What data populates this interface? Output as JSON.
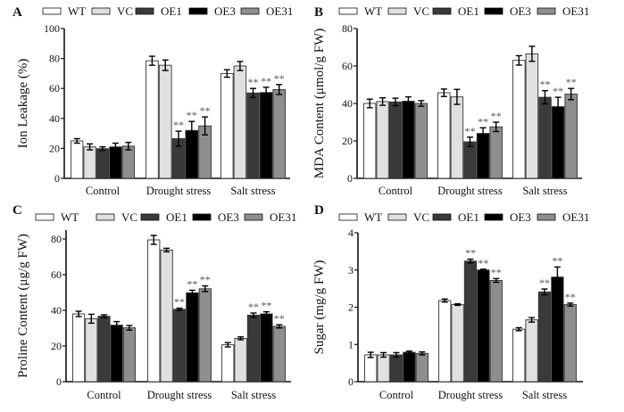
{
  "figure": {
    "series_names": [
      "WT",
      "VC",
      "OE1",
      "OE3",
      "OE31"
    ],
    "series_colors": {
      "WT": "#ffffff",
      "VC": "#e0e0e0",
      "OE1": "#3a3a3a",
      "OE3": "#000000",
      "OE31": "#8e8e8e"
    },
    "significance_marker": "**"
  },
  "chart_data": [
    {
      "panel": "A",
      "type": "bar",
      "ylabel": "Ion Leakage (%)",
      "xlabel": "",
      "categories": [
        "Control",
        "Drought stress",
        "Salt stress"
      ],
      "ylim": [
        0,
        100
      ],
      "yticks": [
        0,
        20,
        40,
        60,
        80,
        100
      ],
      "legend": "top",
      "grid": false,
      "series": [
        {
          "name": "WT",
          "values": [
            25,
            78.5,
            70
          ],
          "errors": [
            1.5,
            3,
            2.5
          ],
          "significant": [
            false,
            false,
            false
          ]
        },
        {
          "name": "VC",
          "values": [
            21,
            75.5,
            75
          ],
          "errors": [
            2,
            3.5,
            3
          ],
          "significant": [
            false,
            false,
            false
          ]
        },
        {
          "name": "OE1",
          "values": [
            19.8,
            26.5,
            57
          ],
          "errors": [
            1.2,
            5,
            3
          ],
          "significant": [
            false,
            true,
            true
          ]
        },
        {
          "name": "OE3",
          "values": [
            21,
            32,
            57.3
          ],
          "errors": [
            2.5,
            6,
            3.5
          ],
          "significant": [
            false,
            true,
            true
          ]
        },
        {
          "name": "OE31",
          "values": [
            21.5,
            35,
            59.3
          ],
          "errors": [
            2.5,
            6,
            3.3
          ],
          "significant": [
            false,
            true,
            true
          ]
        }
      ]
    },
    {
      "panel": "B",
      "type": "bar",
      "ylabel": "MDA Content (μmol/g FW)",
      "xlabel": "",
      "categories": [
        "Control",
        "Drought stress",
        "Salt stress"
      ],
      "ylim": [
        0,
        80
      ],
      "yticks": [
        0,
        20,
        40,
        60,
        80
      ],
      "legend": "top",
      "grid": false,
      "series": [
        {
          "name": "WT",
          "values": [
            40,
            45.7,
            63
          ],
          "errors": [
            2.3,
            2,
            2.5
          ],
          "significant": [
            false,
            false,
            false
          ]
        },
        {
          "name": "VC",
          "values": [
            41,
            43.5,
            66.5
          ],
          "errors": [
            2,
            4,
            4
          ],
          "significant": [
            false,
            false,
            false
          ]
        },
        {
          "name": "OE1",
          "values": [
            40.8,
            19.5,
            43.3
          ],
          "errors": [
            2,
            2.5,
            3.5
          ],
          "significant": [
            false,
            true,
            true
          ]
        },
        {
          "name": "OE3",
          "values": [
            41.2,
            24,
            38.3
          ],
          "errors": [
            2.3,
            3,
            5
          ],
          "significant": [
            false,
            true,
            true
          ]
        },
        {
          "name": "OE31",
          "values": [
            40,
            27.5,
            45
          ],
          "errors": [
            1.5,
            2.5,
            3
          ],
          "significant": [
            false,
            true,
            true
          ]
        }
      ]
    },
    {
      "panel": "C",
      "type": "bar",
      "ylabel": "Proline Content (μg/g FW)",
      "xlabel": "",
      "categories": [
        "Control",
        "Drought stress",
        "Salt stress"
      ],
      "ylim": [
        0,
        85
      ],
      "yticks": [
        0,
        20,
        40,
        60,
        80
      ],
      "legend": "top",
      "grid": false,
      "series": [
        {
          "name": "WT",
          "values": [
            38,
            79.5,
            20.7
          ],
          "errors": [
            1.5,
            2.5,
            1.2
          ],
          "significant": [
            false,
            false,
            false
          ]
        },
        {
          "name": "VC",
          "values": [
            35.3,
            73.8,
            24.3
          ],
          "errors": [
            2.5,
            1,
            0.8
          ],
          "significant": [
            false,
            false,
            false
          ]
        },
        {
          "name": "OE1",
          "values": [
            36.7,
            40.6,
            37.3
          ],
          "errors": [
            0.8,
            0.6,
            1.2
          ],
          "significant": [
            false,
            true,
            true
          ]
        },
        {
          "name": "OE3",
          "values": [
            31.7,
            49.8,
            38
          ],
          "errors": [
            2,
            1.5,
            1.2
          ],
          "significant": [
            false,
            true,
            true
          ]
        },
        {
          "name": "OE31",
          "values": [
            30.2,
            52.1,
            31
          ],
          "errors": [
            1.3,
            1.6,
            0.9
          ],
          "significant": [
            false,
            true,
            true
          ]
        }
      ]
    },
    {
      "panel": "D",
      "type": "bar",
      "ylabel": "Sugar (mg/g FW)",
      "xlabel": "",
      "categories": [
        "Control",
        "Drought stress",
        "Salt stress"
      ],
      "ylim": [
        0,
        4
      ],
      "yticks": [
        0,
        1,
        2,
        3,
        4
      ],
      "legend": "top",
      "grid": false,
      "series": [
        {
          "name": "WT",
          "values": [
            0.72,
            2.18,
            1.41
          ],
          "errors": [
            0.07,
            0.04,
            0.04
          ],
          "significant": [
            false,
            false,
            false
          ]
        },
        {
          "name": "VC",
          "values": [
            0.72,
            2.07,
            1.66
          ],
          "errors": [
            0.06,
            0.02,
            0.06
          ],
          "significant": [
            false,
            false,
            false
          ]
        },
        {
          "name": "OE1",
          "values": [
            0.72,
            3.24,
            2.41
          ],
          "errors": [
            0.06,
            0.05,
            0.08
          ],
          "significant": [
            false,
            true,
            true
          ]
        },
        {
          "name": "OE3",
          "values": [
            0.79,
            3.0,
            2.81
          ],
          "errors": [
            0.03,
            0.02,
            0.27
          ],
          "significant": [
            false,
            true,
            true
          ]
        },
        {
          "name": "OE31",
          "values": [
            0.76,
            2.72,
            2.07
          ],
          "errors": [
            0.04,
            0.05,
            0.04
          ],
          "significant": [
            false,
            true,
            true
          ]
        }
      ]
    }
  ]
}
